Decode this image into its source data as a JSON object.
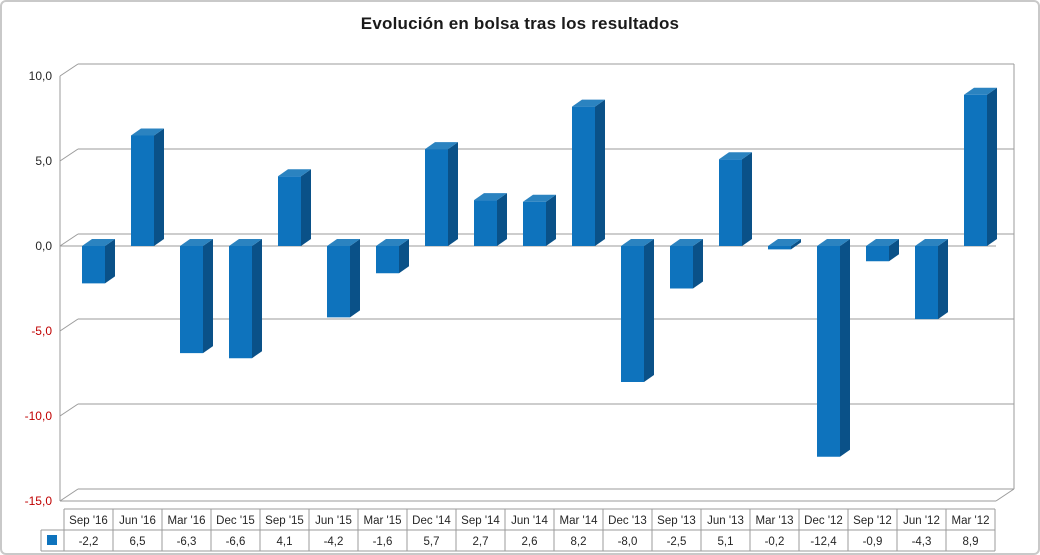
{
  "title": "Evolución en bolsa tras los resultados",
  "colors": {
    "bar_front": "#0e73bd",
    "bar_top": "#2b83c0",
    "bar_side": "#0a5188",
    "grid": "#9b9b9b",
    "tick_positive": "#262626",
    "tick_negative": "#c00000",
    "table_border": "#9b9b9b",
    "table_text": "#262626",
    "legend_key": "#0e73bd"
  },
  "y_axis": {
    "tick_labels": [
      "10,0",
      "5,0",
      "0,0",
      "-5,0",
      "-10,0",
      "-15,0"
    ],
    "tick_values": [
      10,
      5,
      0,
      -5,
      -10,
      -15
    ]
  },
  "legend": {
    "series_marker": "blue-square"
  },
  "chart_data": {
    "type": "bar",
    "style": "3d-column",
    "title": "Evolución en bolsa tras los resultados",
    "xlabel": "",
    "ylabel": "",
    "categories": [
      "Sep '16",
      "Jun '16",
      "Mar '16",
      "Dec '15",
      "Sep '15",
      "Jun '15",
      "Mar '15",
      "Dec '14",
      "Sep '14",
      "Jun '14",
      "Mar '14",
      "Dec '13",
      "Sep '13",
      "Jun '13",
      "Mar '13",
      "Dec '12",
      "Sep '12",
      "Jun '12",
      "Mar '12"
    ],
    "values": [
      -2.2,
      6.5,
      -6.3,
      -6.6,
      4.1,
      -4.2,
      -1.6,
      5.7,
      2.7,
      2.6,
      8.2,
      -8.0,
      -2.5,
      5.1,
      -0.2,
      -12.4,
      -0.9,
      -4.3,
      8.9
    ],
    "value_labels": [
      "-2,2",
      "6,5",
      "-6,3",
      "-6,6",
      "4,1",
      "-4,2",
      "-1,6",
      "5,7",
      "2,7",
      "2,6",
      "8,2",
      "-8,0",
      "-2,5",
      "5,1",
      "-0,2",
      "-12,4",
      "-0,9",
      "-4,3",
      "8,9"
    ],
    "ylim": [
      -15,
      10
    ],
    "grid": true,
    "legend_position": "data-table-key",
    "data_table_shown": true
  }
}
